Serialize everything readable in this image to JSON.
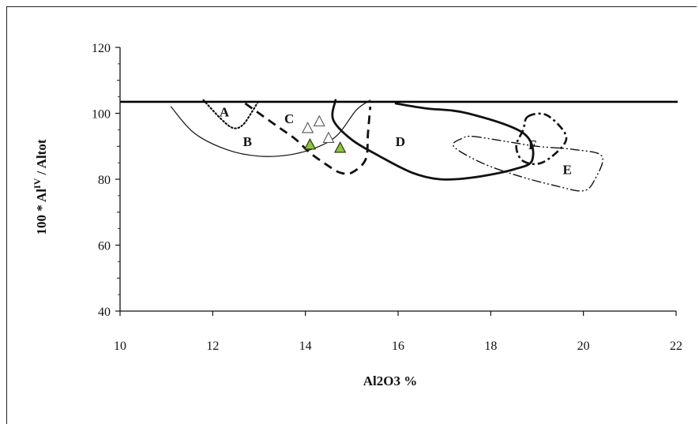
{
  "chart_data": {
    "type": "scatter",
    "xlabel": "Al2O3 %",
    "ylabel": "100 * Al",
    "ylabel_sup": "IV",
    "ylabel_rest": " / Altot",
    "xlim": [
      10,
      22
    ],
    "ylim": [
      40,
      120
    ],
    "x_ticks": [
      "10",
      "12",
      "14",
      "16",
      "18",
      "20",
      "22"
    ],
    "y_ticks": [
      "40",
      "60",
      "80",
      "100",
      "120"
    ],
    "grid": false,
    "reference_line_y": 103.5,
    "series": [
      {
        "marker": "open-triangle",
        "points": [
          [
            14.05,
            95.5
          ],
          [
            14.3,
            97.5
          ],
          [
            14.5,
            92.5
          ]
        ]
      },
      {
        "marker": "filled-triangle",
        "color": "#8dc63f",
        "points": [
          [
            14.1,
            90.5
          ],
          [
            14.75,
            89.5
          ]
        ]
      }
    ],
    "regions": [
      {
        "label": "A",
        "style": "dotted",
        "label_at": [
          12.25,
          100.5
        ],
        "outline": [
          [
            11.8,
            104
          ],
          [
            12.2,
            98
          ],
          [
            12.45,
            95.5
          ],
          [
            12.65,
            96.5
          ],
          [
            12.85,
            100.5
          ],
          [
            13.0,
            104
          ]
        ]
      },
      {
        "label": "B",
        "style": "thin-solid",
        "label_at": [
          12.75,
          91.5
        ],
        "outline": [
          [
            11.1,
            102
          ],
          [
            11.6,
            94
          ],
          [
            12.3,
            89
          ],
          [
            13.0,
            87
          ],
          [
            13.7,
            87.5
          ],
          [
            14.3,
            90
          ],
          [
            14.7,
            93.5
          ],
          [
            15.1,
            101
          ],
          [
            15.4,
            104
          ]
        ]
      },
      {
        "label": "C",
        "style": "dashed",
        "label_at": [
          13.65,
          98.5
        ],
        "outline": [
          [
            12.7,
            103
          ],
          [
            13.0,
            100
          ],
          [
            13.4,
            96
          ],
          [
            13.8,
            92
          ],
          [
            14.1,
            88
          ],
          [
            14.5,
            84
          ],
          [
            14.75,
            82
          ],
          [
            15.0,
            82
          ],
          [
            15.3,
            86
          ],
          [
            15.35,
            94
          ],
          [
            15.4,
            102
          ]
        ]
      },
      {
        "label": "D",
        "style": "thick-solid",
        "label_at": [
          16.05,
          91.5
        ],
        "outline": [
          [
            14.65,
            104
          ],
          [
            14.6,
            98
          ],
          [
            15.0,
            92
          ],
          [
            15.6,
            87
          ],
          [
            16.3,
            82
          ],
          [
            16.9,
            80
          ],
          [
            17.6,
            80.5
          ],
          [
            18.5,
            83
          ],
          [
            18.9,
            86
          ],
          [
            18.7,
            94
          ],
          [
            17.5,
            100
          ],
          [
            16.6,
            101.5
          ],
          [
            15.95,
            103
          ]
        ]
      },
      {
        "label": "E",
        "style": "dash-dot-dot",
        "label_at": [
          19.65,
          83
        ],
        "outline": [
          [
            17.6,
            93
          ],
          [
            18.1,
            92
          ],
          [
            19.0,
            90
          ],
          [
            19.8,
            89
          ],
          [
            20.4,
            87
          ],
          [
            20.25,
            80
          ],
          [
            20.0,
            76.5
          ],
          [
            19.4,
            78
          ],
          [
            18.6,
            81
          ],
          [
            17.8,
            85
          ],
          [
            17.2,
            90
          ],
          [
            17.4,
            92.5
          ]
        ]
      },
      {
        "label": "F",
        "style": "dash-dot",
        "label_at": [
          18.9,
          90.5
        ],
        "outline": [
          [
            18.8,
            99
          ],
          [
            19.2,
            99.5
          ],
          [
            19.6,
            94
          ],
          [
            19.55,
            90
          ],
          [
            19.1,
            85
          ],
          [
            18.7,
            85.5
          ],
          [
            18.55,
            90
          ],
          [
            18.7,
            95
          ]
        ]
      }
    ]
  }
}
